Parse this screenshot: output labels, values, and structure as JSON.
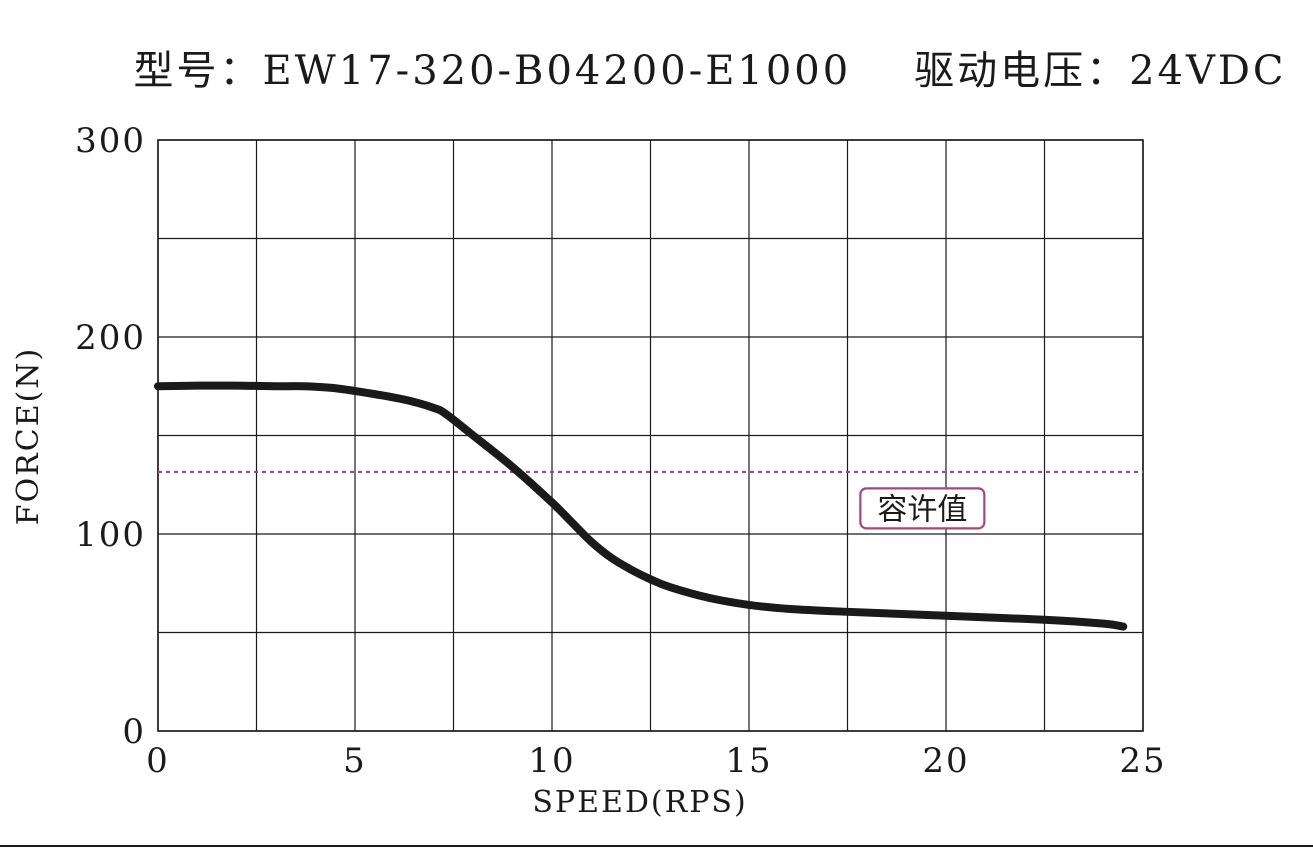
{
  "chart_data": {
    "type": "line",
    "title": "型号：EW17-320-B04200-E1000    驱动电压：24VDC",
    "xlabel": "SPEED(RPS)",
    "ylabel": "FORCE(N)",
    "xlim": [
      0,
      25
    ],
    "ylim": [
      0,
      300
    ],
    "x_ticks": [
      0,
      5,
      10,
      15,
      20,
      25
    ],
    "y_ticks": [
      0,
      100,
      200,
      300
    ],
    "x_minor_gridlines": [
      2.5,
      7.5,
      12.5,
      17.5,
      22.5
    ],
    "y_minor_gridlines": [
      50,
      150,
      250
    ],
    "grid": true,
    "series": [
      {
        "x": [
          0,
          1,
          2,
          3,
          3.7,
          4.5,
          5.5,
          6.3,
          7.0,
          7.3,
          8.0,
          9.0,
          10.0,
          10.5,
          11.0,
          11.5,
          12.0,
          12.5,
          13.0,
          14.0,
          15.0,
          16.0,
          17.5,
          20.0,
          22.5,
          24.0,
          24.5
        ],
        "y": [
          175,
          175.3,
          175.3,
          175,
          175,
          174,
          171,
          168,
          164,
          161,
          150,
          134,
          116,
          106,
          96,
          88,
          82,
          77,
          73,
          67.5,
          64,
          62,
          60.5,
          58.5,
          56.5,
          54.5,
          53
        ],
        "color": "#1a1a1a"
      }
    ],
    "reference_line": {
      "y": 131.5,
      "style": "dashed",
      "color": "#b0407a"
    },
    "annotations": [
      {
        "text": "容许值",
        "x": 19.4,
        "y": 113,
        "border_color": "#a9457a"
      }
    ]
  }
}
